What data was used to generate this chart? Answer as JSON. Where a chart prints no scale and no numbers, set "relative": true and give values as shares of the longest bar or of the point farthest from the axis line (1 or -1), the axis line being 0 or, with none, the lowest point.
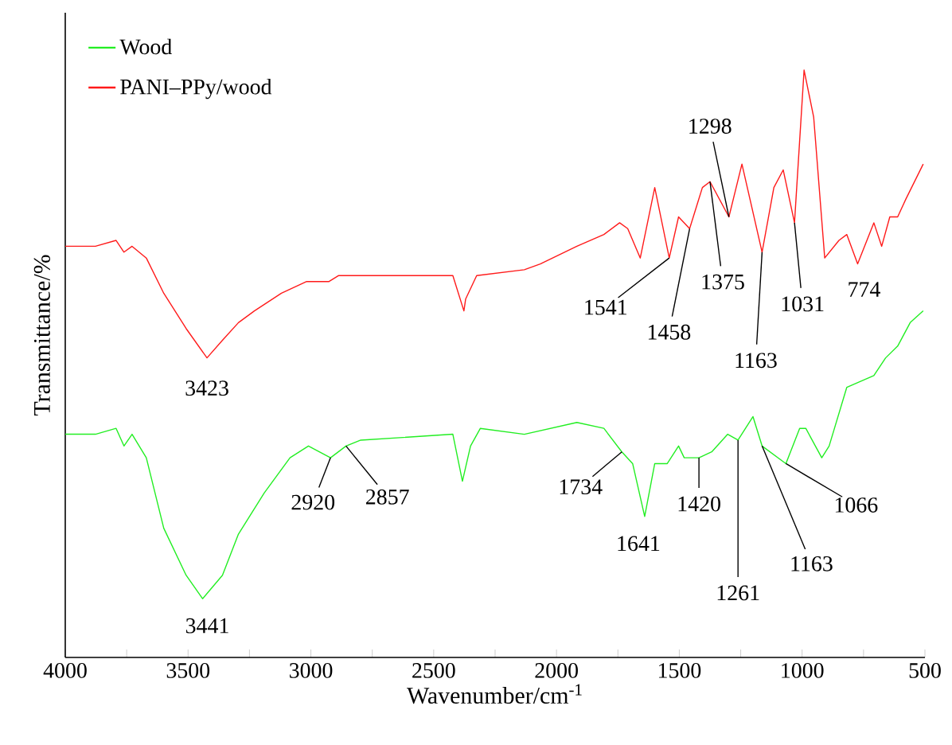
{
  "chart_data": {
    "type": "line",
    "relative": true,
    "xlabel": "Wavenumber/cm$^{-1}$",
    "ylabel": "Transmittance/%",
    "xlim": [
      4000,
      500
    ],
    "xticks": [
      4000,
      {
        "value": 3750,
        "label": null
      },
      3500,
      {
        "value": 3250,
        "label": null
      },
      3000,
      {
        "value": 2750,
        "label": null
      },
      2500,
      {
        "value": 2250,
        "label": null
      },
      2000,
      {
        "value": 1750,
        "label": null
      },
      1500,
      {
        "value": 1250,
        "label": null
      },
      1000,
      {
        "value": 750,
        "label": null
      },
      500
    ],
    "legend": "top left",
    "grid": false,
    "marker": "none",
    "line_style": "solid",
    "series": [
      {
        "name": "Wood",
        "color": "#22ee22",
        "x": [
          4000,
          3877,
          3793,
          3761,
          3728,
          3670,
          3599,
          3508,
          3441,
          3360,
          3295,
          3190,
          3085,
          3010,
          2920,
          2857,
          2797,
          2422,
          2383,
          2350,
          2310,
          2131,
          1917,
          1807,
          1734,
          1690,
          1641,
          1600,
          1549,
          1503,
          1480,
          1420,
          1368,
          1303,
          1261,
          1200,
          1163,
          1066,
          1010,
          985,
          920,
          890,
          818,
          708,
          660,
          611,
          560,
          507
        ],
        "values": [
          0.38,
          0.38,
          0.39,
          0.36,
          0.38,
          0.34,
          0.22,
          0.14,
          0.1,
          0.14,
          0.21,
          0.28,
          0.34,
          0.36,
          0.34,
          0.36,
          0.37,
          0.38,
          0.3,
          0.36,
          0.39,
          0.38,
          0.4,
          0.39,
          0.35,
          0.33,
          0.24,
          0.33,
          0.33,
          0.36,
          0.34,
          0.34,
          0.35,
          0.38,
          0.37,
          0.41,
          0.36,
          0.33,
          0.39,
          0.39,
          0.34,
          0.36,
          0.46,
          0.48,
          0.51,
          0.53,
          0.57,
          0.59
        ]
      },
      {
        "name": "PANI–PPy/wood",
        "color": "#ff1a1a",
        "x": [
          4000,
          3877,
          3793,
          3761,
          3728,
          3670,
          3599,
          3508,
          3423,
          3360,
          3295,
          3230,
          3120,
          3017,
          2926,
          2888,
          2797,
          2422,
          2377,
          2370,
          2325,
          2131,
          2066,
          1917,
          1807,
          1743,
          1710,
          1659,
          1600,
          1541,
          1503,
          1458,
          1406,
          1375,
          1298,
          1245,
          1163,
          1115,
          1077,
          1031,
          992,
          953,
          908,
          850,
          818,
          774,
          708,
          676,
          643,
          611,
          578,
          507
        ],
        "values": [
          0.7,
          0.7,
          0.71,
          0.69,
          0.7,
          0.68,
          0.62,
          0.56,
          0.51,
          0.54,
          0.57,
          0.59,
          0.62,
          0.64,
          0.64,
          0.65,
          0.65,
          0.65,
          0.59,
          0.61,
          0.65,
          0.66,
          0.67,
          0.7,
          0.72,
          0.74,
          0.73,
          0.68,
          0.8,
          0.68,
          0.75,
          0.73,
          0.8,
          0.81,
          0.75,
          0.84,
          0.69,
          0.8,
          0.83,
          0.74,
          1.0,
          0.92,
          0.68,
          0.71,
          0.72,
          0.67,
          0.74,
          0.7,
          0.75,
          0.75,
          0.78,
          0.84
        ]
      }
    ],
    "annotations": [
      {
        "text": "3423",
        "x": 3423,
        "y": 0.51
      },
      {
        "text": "1541",
        "x": 1541,
        "y": 0.68
      },
      {
        "text": "1458",
        "x": 1458,
        "y": 0.73
      },
      {
        "text": "1375",
        "x": 1375,
        "y": 0.81
      },
      {
        "text": "1298",
        "x": 1298,
        "y": 0.75
      },
      {
        "text": "1163",
        "x": 1163,
        "y": 0.69
      },
      {
        "text": "1031",
        "x": 1031,
        "y": 0.74
      },
      {
        "text": "774",
        "x": 774,
        "y": 0.67
      },
      {
        "text": "3441",
        "x": 3441,
        "y": 0.1
      },
      {
        "text": "2920",
        "x": 2920,
        "y": 0.34
      },
      {
        "text": "2857",
        "x": 2857,
        "y": 0.36
      },
      {
        "text": "1734",
        "x": 1734,
        "y": 0.35
      },
      {
        "text": "1641",
        "x": 1641,
        "y": 0.24
      },
      {
        "text": "1420",
        "x": 1420,
        "y": 0.34
      },
      {
        "text": "1261",
        "x": 1261,
        "y": 0.37
      },
      {
        "text": "1163",
        "x": 1163,
        "y": 0.36
      },
      {
        "text": "1066",
        "x": 1066,
        "y": 0.33
      }
    ]
  }
}
